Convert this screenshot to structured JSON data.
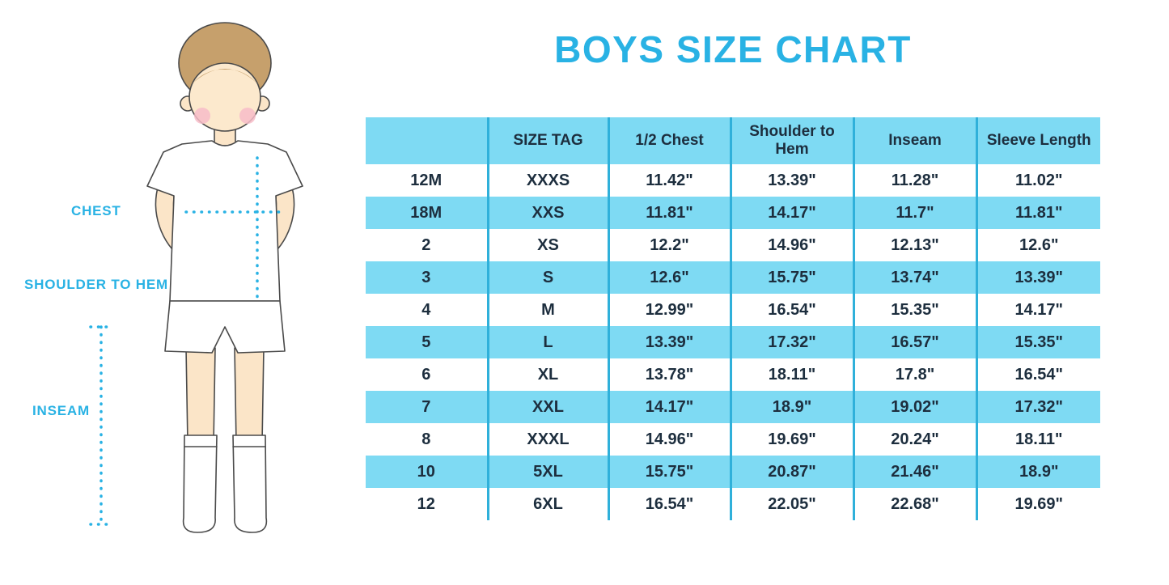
{
  "title": "BOYS SIZE CHART",
  "colors": {
    "accent": "#29b2e4",
    "table_fill": "#7edaf3",
    "table_divider": "#2fb0da",
    "text_dark": "#1d2e3e"
  },
  "figure": {
    "labels": {
      "chest": "CHEST",
      "shoulder_to_hem": "SHOULDER TO HEM",
      "inseam": "INSEAM"
    }
  },
  "chart_data": {
    "type": "table",
    "title": "BOYS SIZE CHART",
    "columns": [
      "",
      "SIZE TAG",
      "1/2 Chest",
      "Shoulder to Hem",
      "Inseam",
      "Sleeve Length"
    ],
    "rows": [
      [
        "12M",
        "XXXS",
        "11.42\"",
        "13.39\"",
        "11.28\"",
        "11.02\""
      ],
      [
        "18M",
        "XXS",
        "11.81\"",
        "14.17\"",
        "11.7\"",
        "11.81\""
      ],
      [
        "2",
        "XS",
        "12.2\"",
        "14.96\"",
        "12.13\"",
        "12.6\""
      ],
      [
        "3",
        "S",
        "12.6\"",
        "15.75\"",
        "13.74\"",
        "13.39\""
      ],
      [
        "4",
        "M",
        "12.99\"",
        "16.54\"",
        "15.35\"",
        "14.17\""
      ],
      [
        "5",
        "L",
        "13.39\"",
        "17.32\"",
        "16.57\"",
        "15.35\""
      ],
      [
        "6",
        "XL",
        "13.78\"",
        "18.11\"",
        "17.8\"",
        "16.54\""
      ],
      [
        "7",
        "XXL",
        "14.17\"",
        "18.9\"",
        "19.02\"",
        "17.32\""
      ],
      [
        "8",
        "XXXL",
        "14.96\"",
        "19.69\"",
        "20.24\"",
        "18.11\""
      ],
      [
        "10",
        "5XL",
        "15.75\"",
        "20.87\"",
        "21.46\"",
        "18.9\""
      ],
      [
        "12",
        "6XL",
        "16.54\"",
        "22.05\"",
        "22.68\"",
        "19.69\""
      ]
    ]
  }
}
